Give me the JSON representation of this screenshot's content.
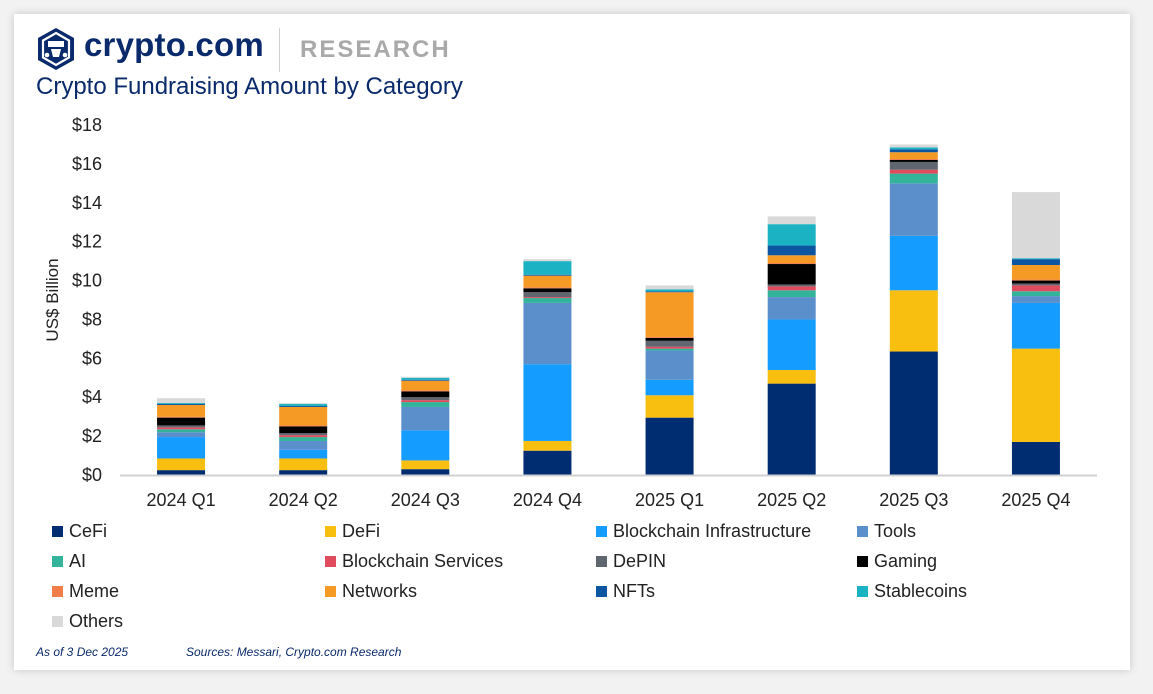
{
  "header": {
    "brand": "crypto.com",
    "section": "RESEARCH",
    "title": "Crypto Fundraising Amount by Category"
  },
  "footer": {
    "as_of": "As of 3 Dec 2025",
    "sources": "Sources: Messari, Crypto.com Research"
  },
  "chart_data": {
    "type": "bar",
    "stacked": true,
    "title": "Crypto Fundraising Amount by Category",
    "xlabel": "",
    "ylabel": "US$ Billion",
    "ylim": [
      0,
      18
    ],
    "yticks": [
      0,
      2,
      4,
      6,
      8,
      10,
      12,
      14,
      16,
      18
    ],
    "ytick_labels": [
      "$0",
      "$2",
      "$4",
      "$6",
      "$8",
      "$10",
      "$12",
      "$14",
      "$16",
      "$18"
    ],
    "grid": false,
    "legend_position": "bottom",
    "categories": [
      "2024 Q1",
      "2024 Q2",
      "2024 Q3",
      "2024 Q4",
      "2025 Q1",
      "2025 Q2",
      "2025 Q3",
      "2025 Q4"
    ],
    "series": [
      {
        "name": "CeFi",
        "color": "#002d72",
        "values": [
          0.25,
          0.25,
          0.3,
          1.25,
          2.95,
          4.7,
          6.35,
          1.7
        ]
      },
      {
        "name": "DeFi",
        "color": "#f9bf10",
        "values": [
          0.6,
          0.6,
          0.45,
          0.5,
          1.15,
          0.7,
          3.15,
          4.8
        ]
      },
      {
        "name": "Blockchain Infrastructure",
        "color": "#149dff",
        "values": [
          1.1,
          0.45,
          1.55,
          3.95,
          0.8,
          2.6,
          2.8,
          2.35
        ]
      },
      {
        "name": "Tools",
        "color": "#5a8fcb",
        "values": [
          0.25,
          0.45,
          1.2,
          3.15,
          1.5,
          1.15,
          2.7,
          0.35
        ]
      },
      {
        "name": "AI",
        "color": "#32b39a",
        "values": [
          0.15,
          0.2,
          0.25,
          0.25,
          0.1,
          0.35,
          0.5,
          0.25
        ]
      },
      {
        "name": "Blockchain Services",
        "color": "#e04b5e",
        "values": [
          0.1,
          0.1,
          0.1,
          0.05,
          0.1,
          0.2,
          0.2,
          0.3
        ]
      },
      {
        "name": "DePIN",
        "color": "#5f6670",
        "values": [
          0.1,
          0.1,
          0.15,
          0.25,
          0.3,
          0.1,
          0.4,
          0.1
        ]
      },
      {
        "name": "Gaming",
        "color": "#000000",
        "values": [
          0.4,
          0.35,
          0.3,
          0.2,
          0.15,
          1.05,
          0.1,
          0.15
        ]
      },
      {
        "name": "Meme",
        "color": "#f07d4a",
        "values": [
          0.05,
          0.05,
          0.05,
          0.05,
          0.05,
          0.05,
          0.05,
          0.05
        ]
      },
      {
        "name": "Networks",
        "color": "#f49a25",
        "values": [
          0.6,
          0.95,
          0.5,
          0.6,
          2.3,
          0.4,
          0.35,
          0.75
        ]
      },
      {
        "name": "NFTs",
        "color": "#0c55a0",
        "values": [
          0.05,
          0.05,
          0.05,
          0.05,
          0.05,
          0.5,
          0.15,
          0.3
        ]
      },
      {
        "name": "Stablecoins",
        "color": "#1bb3c3",
        "values": [
          0.05,
          0.1,
          0.1,
          0.7,
          0.1,
          1.1,
          0.1,
          0.05
        ]
      },
      {
        "name": "Others",
        "color": "#d9d9d9",
        "values": [
          0.25,
          0.05,
          0.05,
          0.1,
          0.2,
          0.4,
          0.15,
          3.4
        ]
      }
    ]
  }
}
